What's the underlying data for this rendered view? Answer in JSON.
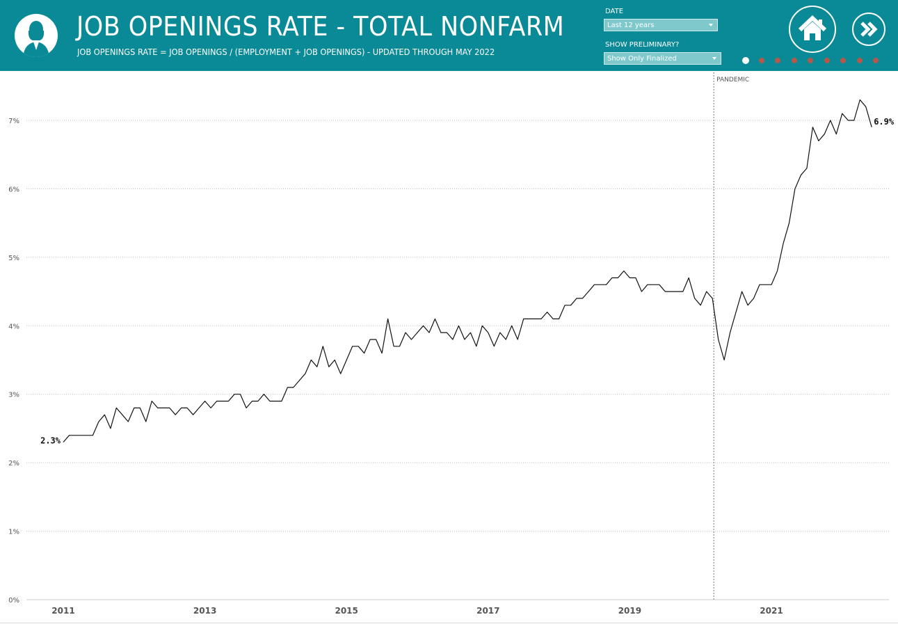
{
  "header": {
    "title": "JOB OPENINGS RATE - TOTAL NONFARM",
    "subtitle": "JOB OPENINGS RATE = JOB OPENINGS / (EMPLOYMENT + JOB OPENINGS)  -  UPDATED THROUGH MAY 2022",
    "logo_icon": "person-silhouette-icon",
    "bg_color": "#0a8a96"
  },
  "controls": {
    "date_label": "DATE",
    "date_value": "Last 12 years",
    "preliminary_label": "SHOW PRELIMINARY?",
    "preliminary_value": "Show Only Finalized"
  },
  "nav": {
    "home_icon": "home-icon",
    "next_icon": "double-chevron-right-icon",
    "page_count": 9,
    "active_page": 1
  },
  "chart_data": {
    "type": "line",
    "x_start": "2011-01",
    "x_end": "2022-05",
    "frequency": "monthly",
    "values": [
      2.3,
      2.4,
      2.4,
      2.4,
      2.4,
      2.4,
      2.6,
      2.7,
      2.5,
      2.8,
      2.7,
      2.6,
      2.8,
      2.8,
      2.6,
      2.9,
      2.8,
      2.8,
      2.8,
      2.7,
      2.8,
      2.8,
      2.7,
      2.8,
      2.9,
      2.8,
      2.9,
      2.9,
      2.9,
      3.0,
      3.0,
      2.8,
      2.9,
      2.9,
      3.0,
      2.9,
      2.9,
      2.9,
      3.1,
      3.1,
      3.2,
      3.3,
      3.5,
      3.4,
      3.7,
      3.4,
      3.5,
      3.3,
      3.5,
      3.7,
      3.7,
      3.6,
      3.8,
      3.8,
      3.6,
      4.1,
      3.7,
      3.7,
      3.9,
      3.8,
      3.9,
      4.0,
      3.9,
      4.1,
      3.9,
      3.9,
      3.8,
      4.0,
      3.8,
      3.9,
      3.7,
      4.0,
      3.9,
      3.7,
      3.9,
      3.8,
      4.0,
      3.8,
      4.1,
      4.1,
      4.1,
      4.1,
      4.2,
      4.1,
      4.1,
      4.3,
      4.3,
      4.4,
      4.4,
      4.5,
      4.6,
      4.6,
      4.6,
      4.7,
      4.7,
      4.8,
      4.7,
      4.7,
      4.5,
      4.6,
      4.6,
      4.6,
      4.5,
      4.5,
      4.5,
      4.5,
      4.7,
      4.4,
      4.3,
      4.5,
      4.4,
      3.8,
      3.5,
      3.9,
      4.2,
      4.5,
      4.3,
      4.4,
      4.6,
      4.6,
      4.6,
      4.8,
      5.2,
      5.5,
      6.0,
      6.2,
      6.3,
      6.9,
      6.7,
      6.8,
      7.0,
      6.8,
      7.1,
      7.0,
      7.0,
      7.3,
      7.2,
      6.9
    ],
    "ylim": [
      0,
      7.5
    ],
    "y_ticks": [
      "0%",
      "1%",
      "2%",
      "3%",
      "4%",
      "5%",
      "6%",
      "7%"
    ],
    "x_ticks": [
      "2011",
      "2013",
      "2015",
      "2017",
      "2019",
      "2021"
    ],
    "start_label": "2.3%",
    "end_label": "6.9%",
    "annotation": {
      "label": "PANDEMIC",
      "date": "2020-03"
    },
    "line_color": "#111111",
    "grid": true
  }
}
